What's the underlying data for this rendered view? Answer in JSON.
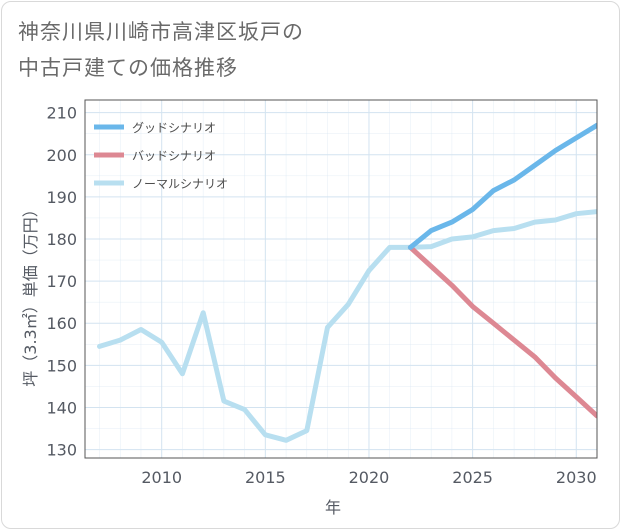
{
  "title_line1": "神奈川県川崎市高津区坂戸の",
  "title_line2": "中古戸建ての価格推移",
  "colors": {
    "good": "#6ab7ea",
    "bad": "#dd8893",
    "normal": "#b8dff0",
    "grid": "#d3e3f0",
    "frame": "#555555"
  },
  "chart_data": {
    "type": "line",
    "xlabel": "年",
    "ylabel": "坪（3.3㎡）単価（万円）",
    "xlim": [
      2006.3,
      2031
    ],
    "ylim": [
      128,
      213
    ],
    "xticks": [
      2010,
      2015,
      2020,
      2025,
      2030
    ],
    "xtick_labels": [
      "2010",
      "2015",
      "2020",
      "2025",
      "2030"
    ],
    "yticks": [
      130,
      140,
      150,
      160,
      170,
      180,
      190,
      200,
      210
    ],
    "ytick_labels": [
      "130",
      "140",
      "150",
      "160",
      "170",
      "180",
      "190",
      "200",
      "210"
    ],
    "legend_position": "top-left",
    "series": [
      {
        "name": "グッドシナリオ",
        "color_key": "good",
        "x": [
          2022,
          2023,
          2024,
          2025,
          2026,
          2027,
          2028,
          2029,
          2030,
          2031
        ],
        "y": [
          178,
          182,
          184,
          187,
          191.5,
          194,
          197.5,
          201,
          204,
          207
        ]
      },
      {
        "name": "バッドシナリオ",
        "color_key": "bad",
        "x": [
          2022,
          2023,
          2024,
          2025,
          2026,
          2027,
          2028,
          2029,
          2030,
          2031
        ],
        "y": [
          178,
          173.5,
          169,
          164,
          160,
          156,
          152,
          147,
          142.5,
          138
        ]
      },
      {
        "name": "ノーマルシナリオ",
        "color_key": "normal",
        "x": [
          2007,
          2008,
          2009,
          2010,
          2011,
          2012,
          2013,
          2014,
          2015,
          2016,
          2017,
          2018,
          2019,
          2020,
          2021,
          2022,
          2023,
          2024,
          2025,
          2026,
          2027,
          2028,
          2029,
          2030,
          2031
        ],
        "y": [
          154.5,
          156,
          158.5,
          155.5,
          148,
          162.5,
          141.5,
          139.5,
          133.5,
          132.2,
          134.5,
          159,
          164.5,
          172.5,
          178,
          178,
          178.2,
          180,
          180.5,
          182,
          182.5,
          184,
          184.5,
          186,
          186.5
        ]
      }
    ]
  }
}
